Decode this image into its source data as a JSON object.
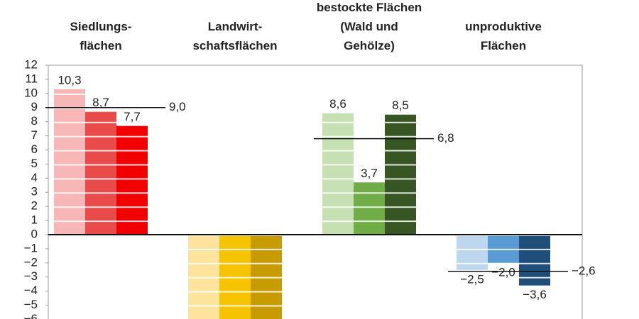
{
  "chart_data": {
    "type": "grouped-bar",
    "groups": [
      {
        "label": "Siedlungs-\nflächen",
        "values": [
          10.3,
          8.7,
          7.7
        ],
        "value_labels": [
          "10,3",
          "8,7",
          "7,7"
        ],
        "colors": [
          "#f7b7b7",
          "#e94b4b",
          "#f20000"
        ],
        "average": 9.0,
        "average_label": "9,0"
      },
      {
        "label": "Landwirt-\nschaftsflächen",
        "values": [
          -6,
          -6,
          -6
        ],
        "colors": [
          "#fde39b",
          "#f6c300",
          "#c89b00"
        ]
      },
      {
        "label": "bestockte Flächen\n(Wald und\nGehölze)",
        "values": [
          8.6,
          3.7,
          8.5
        ],
        "value_labels": [
          "8,6",
          "3,7",
          "8,5"
        ],
        "colors": [
          "#c6e0b4",
          "#70ad47",
          "#375623"
        ],
        "average": 6.8,
        "average_label": "6,8"
      },
      {
        "label": "unproduktive\nFlächen",
        "values": [
          -2.5,
          -2.0,
          -3.6
        ],
        "value_labels": [
          "−2,5",
          "−2,0",
          "−3,6"
        ],
        "colors": [
          "#bdd7ee",
          "#5b9bd5",
          "#1f4e79"
        ],
        "average": -2.6,
        "average_label": "−2,6"
      }
    ],
    "ylim": [
      -6,
      12
    ],
    "yticks": [
      {
        "value": -6,
        "label": "−6"
      },
      {
        "value": -5,
        "label": "−5"
      },
      {
        "value": -4,
        "label": "−4"
      },
      {
        "value": -3,
        "label": "−3"
      },
      {
        "value": -2,
        "label": "−2"
      },
      {
        "value": -1,
        "label": "−1"
      },
      0,
      1,
      2,
      3,
      4,
      5,
      6,
      7,
      8,
      9,
      10,
      11,
      12
    ]
  }
}
